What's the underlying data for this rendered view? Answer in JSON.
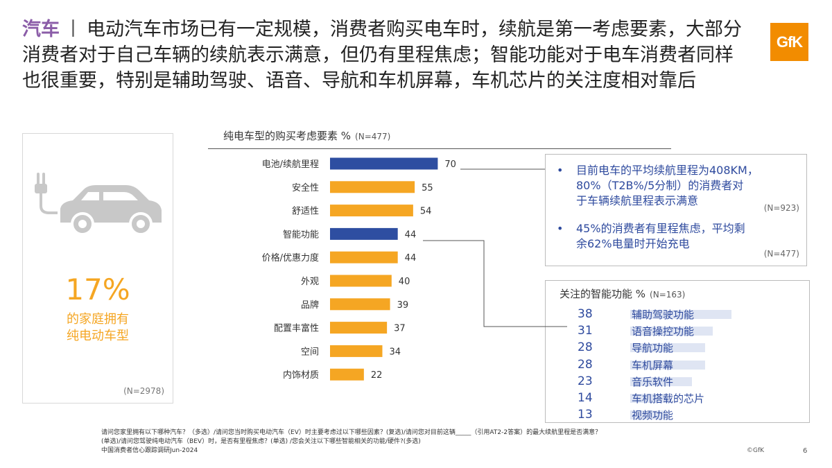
{
  "header": {
    "tag": "汽车",
    "separator": "丨",
    "headline": "电动汽车市场已有一定规模，消费者购买电车时，续航是第一考虑要素，大部分消费者对于自己车辆的续航表示满意，但仍有里程焦虑；智能功能对于电车消费者同样也很重要，特别是辅助驾驶、语音、导航和车机屏幕，车机芯片的关注度相对靠后"
  },
  "logo": {
    "text": "GfK",
    "color": "#f28c00"
  },
  "left_panel": {
    "percentage": "17%",
    "label_line1": "的家庭拥有",
    "label_line2": "纯电动车型",
    "sample": "(N=2978)",
    "icon": "electric-car-icon"
  },
  "chart_data": {
    "type": "bar",
    "orientation": "horizontal",
    "title": "纯电车型的购买考虑要素 %",
    "sample": "(N=477)",
    "categories": [
      "电池/续航里程",
      "安全性",
      "舒适性",
      "智能功能",
      "价格/优惠力度",
      "外观",
      "品牌",
      "配置丰富性",
      "空间",
      "内饰材质"
    ],
    "values": [
      70,
      55,
      54,
      44,
      44,
      40,
      39,
      37,
      34,
      22
    ],
    "highlighted": [
      "电池/续航里程",
      "智能功能"
    ],
    "colors": {
      "default": "#f5a623",
      "highlight": "#2e4ea1"
    },
    "xlim": [
      0,
      100
    ],
    "grid": false,
    "legend": false
  },
  "callout_range": {
    "bullet1_line1": "目前电车的平均续航里程为408KM，",
    "bullet1_line2": "80%（T2B%/5分制）的消费者对",
    "bullet1_line3": "于车辆续航里程表示满意",
    "bullet1_sample": "(N=923)",
    "bullet2_line1": "45%的消费者有里程焦虑，平均剩",
    "bullet2_line2": "余62%电量时开始充电",
    "bullet2_sample": "(N=477)",
    "bullet": "•"
  },
  "callout_smart": {
    "title": "关注的智能功能 %",
    "sample": "(N=163)",
    "features": [
      {
        "value": "38",
        "label": "辅助驾驶功能",
        "pct": 38
      },
      {
        "value": "31",
        "label": "语音操控功能",
        "pct": 31
      },
      {
        "value": "28",
        "label": "导航功能",
        "pct": 28
      },
      {
        "value": "28",
        "label": "车机屏幕",
        "pct": 28
      },
      {
        "value": "23",
        "label": "音乐软件",
        "pct": 23
      },
      {
        "value": "14",
        "label": "车机搭载的芯片",
        "pct": 14
      },
      {
        "value": "13",
        "label": "视频功能",
        "pct": 13
      }
    ]
  },
  "footer": {
    "line1": "请问您家里拥有以下哪种汽车？（多选）/请问您当时购买电动汽车（EV）时主要考虑过以下哪些因素？(复选)/请问您对目前这辆_____（引用AT2-2答案）的最大续航里程是否满意？",
    "line2": "(单选)/请问您驾驶纯电动汽车（BEV）时，是否有里程焦虑？(单选) /您会关注以下哪些智能相关的功能/硬件?(多选)",
    "line3": "中国消费者信心跟踪调研Jun-2024",
    "copyright": "©GfK",
    "page": "6"
  }
}
